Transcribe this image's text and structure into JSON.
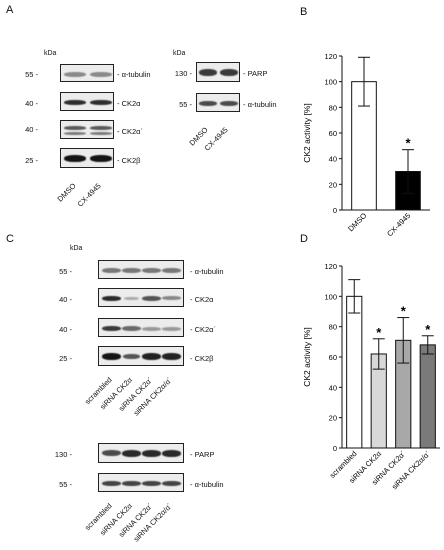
{
  "panelA": {
    "label": "A",
    "kda": "kDa",
    "left_blots": [
      {
        "mw": "55 -",
        "protein": "- α-tubulin"
      },
      {
        "mw": "40 -",
        "protein": "- CK2α"
      },
      {
        "mw": "40 -",
        "protein": "- CK2α´"
      },
      {
        "mw": "25 -",
        "protein": "- CK2β"
      }
    ],
    "right_blots": [
      {
        "mw": "130 -",
        "protein": "- PARP"
      },
      {
        "mw": "55 -",
        "protein": "- α-tubulin"
      }
    ],
    "lanes": [
      "DMSO",
      "CX-4945"
    ]
  },
  "panelB": {
    "label": "B",
    "chart_data": {
      "type": "bar",
      "categories": [
        "DMSO",
        "CX-4945"
      ],
      "values": [
        100,
        30
      ],
      "errors": [
        19,
        17
      ],
      "significance": [
        "",
        "*"
      ],
      "colors": [
        "#ffffff",
        "#000000"
      ],
      "ylabel": "CK2 activity [%]",
      "ylim": [
        0,
        120
      ],
      "yticks": [
        0,
        20,
        40,
        60,
        80,
        100,
        120
      ]
    }
  },
  "panelC": {
    "label": "C",
    "kda": "kDa",
    "top_blots": [
      {
        "mw": "55 -",
        "protein": "- α-tubulin"
      },
      {
        "mw": "40 -",
        "protein": "- CK2α"
      },
      {
        "mw": "40 -",
        "protein": "- CK2α´"
      },
      {
        "mw": "25 -",
        "protein": "- CK2β"
      }
    ],
    "bottom_blots": [
      {
        "mw": "130 -",
        "protein": "- PARP"
      },
      {
        "mw": "55 -",
        "protein": "- α-tubulin"
      }
    ],
    "lanes": [
      "scrambled",
      "siRNA CK2α",
      "siRNA CK2α´",
      "siRNA CK2α/α´"
    ]
  },
  "panelD": {
    "label": "D",
    "chart_data": {
      "type": "bar",
      "categories": [
        "scrambled",
        "siRNA CK2α",
        "siRNA CK2α´",
        "siRNA CK2α/α´"
      ],
      "values": [
        100,
        62,
        71,
        68
      ],
      "errors": [
        11,
        10,
        15,
        6
      ],
      "significance": [
        "",
        "*",
        "*",
        "*"
      ],
      "colors": [
        "#ffffff",
        "#d8d8d8",
        "#a8a8a8",
        "#7a7a7a"
      ],
      "ylabel": "CK2 activity [%]",
      "ylim": [
        0,
        120
      ],
      "yticks": [
        0,
        20,
        40,
        60,
        80,
        100,
        120
      ]
    }
  }
}
